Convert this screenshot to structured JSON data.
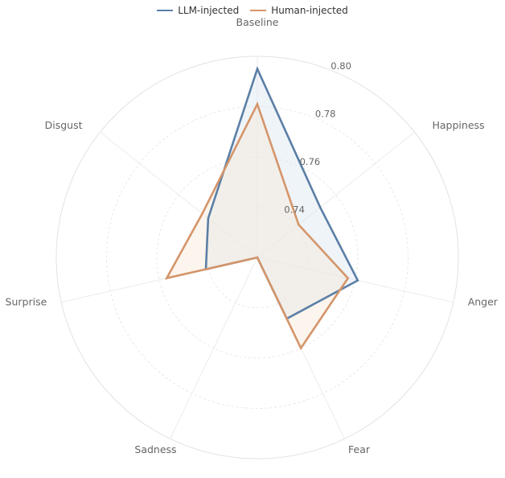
{
  "chart_data": {
    "type": "radar",
    "title": "",
    "categories": [
      "Baseline",
      "Happiness",
      "Anger",
      "Fear",
      "Sadness",
      "Surprise",
      "Disgust"
    ],
    "rlim": [
      0.72,
      0.8
    ],
    "rticks": [
      0.74,
      0.76,
      0.78,
      0.8
    ],
    "tick_labels": [
      "0.74",
      "0.76",
      "0.78",
      "0.80"
    ],
    "grid": true,
    "legend_position": "top-center",
    "series": [
      {
        "name": "LLM-injected",
        "color": "#5b7fa6",
        "fill": "#dbe6f1",
        "values": [
          0.795,
          0.752,
          0.761,
          0.747,
          0.72,
          0.741,
          0.745
        ]
      },
      {
        "name": "Human-injected",
        "color": "#d4956a",
        "fill": "#f6e8d8",
        "values": [
          0.781,
          0.741,
          0.757,
          0.76,
          0.72,
          0.757,
          0.748
        ]
      }
    ]
  }
}
